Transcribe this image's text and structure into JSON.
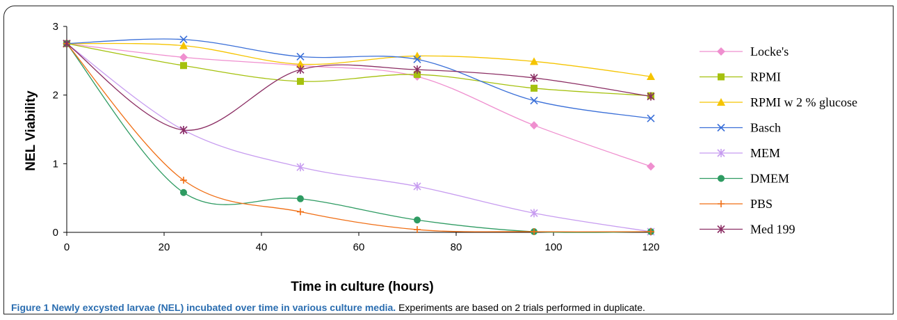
{
  "chart_data": {
    "type": "line",
    "xlabel": "Time in culture (hours)",
    "ylabel": "NEL Viability",
    "xlim": [
      0,
      120
    ],
    "ylim": [
      0,
      3
    ],
    "x_ticks": [
      "0",
      "20",
      "40",
      "60",
      "80",
      "100",
      "120"
    ],
    "y_ticks": [
      "0",
      "1",
      "2",
      "3"
    ],
    "grid": false,
    "legend_position": "right",
    "x": [
      0,
      24,
      48,
      72,
      96,
      120
    ],
    "series": [
      {
        "name": "Locke's",
        "color": "#ef8fcf",
        "marker": "diamond",
        "values": [
          2.75,
          2.55,
          2.43,
          2.27,
          1.56,
          0.96
        ]
      },
      {
        "name": "RPMI",
        "color": "#a5c10e",
        "marker": "square",
        "values": [
          2.75,
          2.43,
          2.2,
          2.3,
          2.1,
          1.99
        ]
      },
      {
        "name": "RPMI w 2 % glucose",
        "color": "#f5c400",
        "marker": "triangle",
        "values": [
          2.75,
          2.72,
          2.45,
          2.57,
          2.49,
          2.27
        ]
      },
      {
        "name": "Basch",
        "color": "#3a6fd8",
        "marker": "x",
        "values": [
          2.75,
          2.81,
          2.56,
          2.52,
          1.92,
          1.66
        ]
      },
      {
        "name": "MEM",
        "color": "#c79cf0",
        "marker": "star",
        "values": [
          2.75,
          1.49,
          0.95,
          0.67,
          0.28,
          0.01
        ]
      },
      {
        "name": "DMEM",
        "color": "#2e9b62",
        "marker": "circle",
        "values": [
          2.75,
          0.58,
          0.49,
          0.18,
          0.01,
          0.01
        ]
      },
      {
        "name": "PBS",
        "color": "#f06e14",
        "marker": "plus",
        "values": [
          2.75,
          0.76,
          0.3,
          0.04,
          0.01,
          0.01
        ]
      },
      {
        "name": "Med 199",
        "color": "#8b2d63",
        "marker": "star",
        "values": [
          2.75,
          1.49,
          2.37,
          2.37,
          2.25,
          1.98
        ]
      }
    ]
  },
  "caption": {
    "label": "Figure 1",
    "title": "Newly excysted larvae (NEL) incubated over time in various culture media.",
    "text": "Experiments are based on 2 trials performed in duplicate."
  }
}
